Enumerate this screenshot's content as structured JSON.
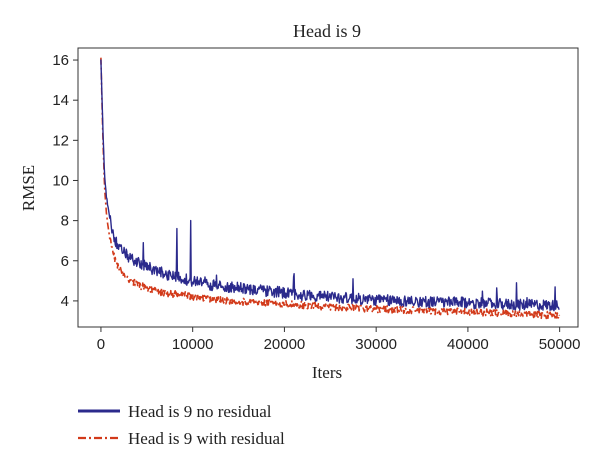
{
  "chart_data": {
    "type": "line",
    "title": "Head is 9",
    "xlabel": "Iters",
    "ylabel": "RMSE",
    "xlim": [
      -2500,
      52000
    ],
    "ylim": [
      2.7,
      16.6
    ],
    "xticks": [
      0,
      10000,
      20000,
      30000,
      40000,
      50000
    ],
    "yticks": [
      4,
      6,
      8,
      10,
      12,
      14,
      16
    ],
    "grid": false,
    "legend_position": "bottom-left, below plot",
    "series": [
      {
        "name": "Head is 9 no residual",
        "color": "#2b2a8c",
        "style": "solid",
        "x": [
          0,
          200,
          400,
          600,
          800,
          1000,
          1500,
          2000,
          3000,
          4000,
          5000,
          6000,
          7000,
          8000,
          9000,
          10000,
          12000,
          14000,
          16000,
          18000,
          20000,
          22000,
          25000,
          28000,
          30000,
          33000,
          36000,
          40000,
          43000,
          46000,
          48000,
          50000
        ],
        "values": [
          16.0,
          12.8,
          10.2,
          9.2,
          8.6,
          8.0,
          7.1,
          6.6,
          6.2,
          5.9,
          5.7,
          5.5,
          5.35,
          5.2,
          5.1,
          5.0,
          4.8,
          4.7,
          4.6,
          4.5,
          4.4,
          4.3,
          4.2,
          4.1,
          4.05,
          4.0,
          3.95,
          3.9,
          3.85,
          3.8,
          3.8,
          3.75
        ],
        "spikes": [
          {
            "x": 8300,
            "y": 7.6
          },
          {
            "x": 9800,
            "y": 8.0
          },
          {
            "x": 4600,
            "y": 6.9
          },
          {
            "x": 21000,
            "y": 5.2
          },
          {
            "x": 27500,
            "y": 5.1
          },
          {
            "x": 45300,
            "y": 4.9
          },
          {
            "x": 49500,
            "y": 4.7
          }
        ]
      },
      {
        "name": "Head is 9 with residual",
        "color": "#d23a1a",
        "style": "dashdot",
        "x": [
          0,
          200,
          400,
          600,
          800,
          1000,
          1500,
          2000,
          3000,
          4000,
          5000,
          6000,
          7000,
          8000,
          9000,
          10000,
          12000,
          14000,
          16000,
          18000,
          20000,
          22000,
          25000,
          28000,
          30000,
          33000,
          36000,
          40000,
          43000,
          46000,
          48000,
          50000
        ],
        "values": [
          16.1,
          12.3,
          9.6,
          8.4,
          7.6,
          7.0,
          6.1,
          5.6,
          5.1,
          4.8,
          4.65,
          4.5,
          4.4,
          4.35,
          4.3,
          4.2,
          4.1,
          4.0,
          3.95,
          3.9,
          3.85,
          3.8,
          3.7,
          3.65,
          3.6,
          3.55,
          3.5,
          3.45,
          3.4,
          3.35,
          3.3,
          3.3
        ]
      }
    ]
  }
}
